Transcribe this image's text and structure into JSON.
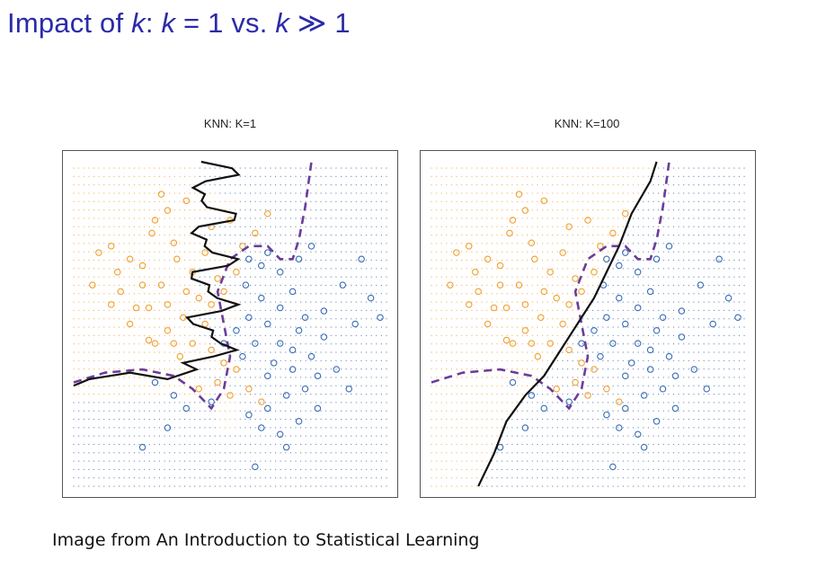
{
  "slide": {
    "title_prefix": "Impact of ",
    "title_k1": "k",
    "title_colon": ": ",
    "title_k2": "k",
    "title_eq": " = 1 vs. ",
    "title_k3": "k",
    "title_gg": " ≫ 1",
    "caption": "Image from An Introduction to Statistical Learning"
  },
  "colors": {
    "title": "#2b2ba8",
    "class_orange": "#f0a030",
    "class_blue": "#3a6db5",
    "knn_boundary": "#111111",
    "bayes_boundary": "#6a3d9a"
  },
  "chart_data": [
    {
      "type": "scatter",
      "title": "KNN: K=1",
      "xlim": [
        0,
        1
      ],
      "ylim": [
        0,
        1
      ],
      "grid_background": "dotted class-colored lattice",
      "series": [
        {
          "color": "orange",
          "points": [
            [
              0.12,
              0.74
            ],
            [
              0.18,
              0.7
            ],
            [
              0.25,
              0.78
            ],
            [
              0.3,
              0.85
            ],
            [
              0.22,
              0.68
            ],
            [
              0.08,
              0.72
            ],
            [
              0.15,
              0.6
            ],
            [
              0.2,
              0.55
            ],
            [
              0.28,
              0.62
            ],
            [
              0.33,
              0.7
            ],
            [
              0.38,
              0.66
            ],
            [
              0.42,
              0.72
            ],
            [
              0.4,
              0.58
            ],
            [
              0.35,
              0.52
            ],
            [
              0.3,
              0.48
            ],
            [
              0.24,
              0.45
            ],
            [
              0.18,
              0.5
            ],
            [
              0.12,
              0.56
            ],
            [
              0.06,
              0.62
            ],
            [
              0.28,
              0.9
            ],
            [
              0.36,
              0.88
            ],
            [
              0.44,
              0.8
            ],
            [
              0.46,
              0.64
            ],
            [
              0.42,
              0.5
            ],
            [
              0.38,
              0.44
            ],
            [
              0.34,
              0.4
            ],
            [
              0.44,
              0.42
            ],
            [
              0.48,
              0.38
            ],
            [
              0.52,
              0.36
            ],
            [
              0.4,
              0.3
            ],
            [
              0.46,
              0.32
            ],
            [
              0.5,
              0.28
            ],
            [
              0.56,
              0.3
            ],
            [
              0.6,
              0.26
            ],
            [
              0.36,
              0.6
            ],
            [
              0.26,
              0.82
            ],
            [
              0.32,
              0.75
            ],
            [
              0.14,
              0.66
            ],
            [
              0.22,
              0.62
            ],
            [
              0.48,
              0.6
            ],
            [
              0.52,
              0.66
            ],
            [
              0.54,
              0.74
            ],
            [
              0.5,
              0.82
            ],
            [
              0.58,
              0.78
            ],
            [
              0.62,
              0.84
            ],
            [
              0.24,
              0.55
            ],
            [
              0.3,
              0.56
            ],
            [
              0.44,
              0.56
            ],
            [
              0.26,
              0.44
            ],
            [
              0.32,
              0.44
            ]
          ]
        },
        {
          "color": "blue",
          "points": [
            [
              0.55,
              0.62
            ],
            [
              0.6,
              0.58
            ],
            [
              0.66,
              0.55
            ],
            [
              0.7,
              0.6
            ],
            [
              0.62,
              0.5
            ],
            [
              0.58,
              0.44
            ],
            [
              0.66,
              0.44
            ],
            [
              0.72,
              0.48
            ],
            [
              0.64,
              0.38
            ],
            [
              0.7,
              0.36
            ],
            [
              0.76,
              0.4
            ],
            [
              0.8,
              0.46
            ],
            [
              0.74,
              0.3
            ],
            [
              0.68,
              0.28
            ],
            [
              0.62,
              0.24
            ],
            [
              0.56,
              0.22
            ],
            [
              0.6,
              0.18
            ],
            [
              0.66,
              0.16
            ],
            [
              0.72,
              0.2
            ],
            [
              0.78,
              0.24
            ],
            [
              0.84,
              0.36
            ],
            [
              0.88,
              0.3
            ],
            [
              0.92,
              0.7
            ],
            [
              0.95,
              0.58
            ],
            [
              0.86,
              0.62
            ],
            [
              0.9,
              0.5
            ],
            [
              0.98,
              0.52
            ],
            [
              0.56,
              0.52
            ],
            [
              0.52,
              0.48
            ],
            [
              0.48,
              0.44
            ],
            [
              0.44,
              0.26
            ],
            [
              0.32,
              0.28
            ],
            [
              0.36,
              0.24
            ],
            [
              0.26,
              0.32
            ],
            [
              0.3,
              0.18
            ],
            [
              0.22,
              0.12
            ],
            [
              0.6,
              0.68
            ],
            [
              0.56,
              0.7
            ],
            [
              0.62,
              0.72
            ],
            [
              0.66,
              0.66
            ],
            [
              0.72,
              0.7
            ],
            [
              0.76,
              0.74
            ],
            [
              0.74,
              0.52
            ],
            [
              0.8,
              0.54
            ],
            [
              0.68,
              0.12
            ],
            [
              0.58,
              0.06
            ],
            [
              0.62,
              0.34
            ],
            [
              0.54,
              0.4
            ],
            [
              0.7,
              0.42
            ],
            [
              0.78,
              0.34
            ]
          ]
        }
      ]
    },
    {
      "type": "scatter",
      "title": "KNN: K=100",
      "xlim": [
        0,
        1
      ],
      "ylim": [
        0,
        1
      ],
      "grid_background": "dotted class-colored lattice",
      "series": [
        {
          "color": "orange",
          "points": [
            [
              0.12,
              0.74
            ],
            [
              0.18,
              0.7
            ],
            [
              0.25,
              0.78
            ],
            [
              0.3,
              0.85
            ],
            [
              0.22,
              0.68
            ],
            [
              0.08,
              0.72
            ],
            [
              0.15,
              0.6
            ],
            [
              0.2,
              0.55
            ],
            [
              0.28,
              0.62
            ],
            [
              0.33,
              0.7
            ],
            [
              0.38,
              0.66
            ],
            [
              0.42,
              0.72
            ],
            [
              0.4,
              0.58
            ],
            [
              0.35,
              0.52
            ],
            [
              0.3,
              0.48
            ],
            [
              0.24,
              0.45
            ],
            [
              0.18,
              0.5
            ],
            [
              0.12,
              0.56
            ],
            [
              0.06,
              0.62
            ],
            [
              0.28,
              0.9
            ],
            [
              0.36,
              0.88
            ],
            [
              0.44,
              0.8
            ],
            [
              0.46,
              0.64
            ],
            [
              0.42,
              0.5
            ],
            [
              0.38,
              0.44
            ],
            [
              0.34,
              0.4
            ],
            [
              0.44,
              0.42
            ],
            [
              0.48,
              0.38
            ],
            [
              0.52,
              0.36
            ],
            [
              0.4,
              0.3
            ],
            [
              0.46,
              0.32
            ],
            [
              0.5,
              0.28
            ],
            [
              0.56,
              0.3
            ],
            [
              0.6,
              0.26
            ],
            [
              0.36,
              0.6
            ],
            [
              0.26,
              0.82
            ],
            [
              0.32,
              0.75
            ],
            [
              0.14,
              0.66
            ],
            [
              0.22,
              0.62
            ],
            [
              0.48,
              0.6
            ],
            [
              0.52,
              0.66
            ],
            [
              0.54,
              0.74
            ],
            [
              0.5,
              0.82
            ],
            [
              0.58,
              0.78
            ],
            [
              0.62,
              0.84
            ],
            [
              0.24,
              0.55
            ],
            [
              0.3,
              0.56
            ],
            [
              0.44,
              0.56
            ],
            [
              0.26,
              0.44
            ],
            [
              0.32,
              0.44
            ]
          ]
        },
        {
          "color": "blue",
          "points": [
            [
              0.55,
              0.62
            ],
            [
              0.6,
              0.58
            ],
            [
              0.66,
              0.55
            ],
            [
              0.7,
              0.6
            ],
            [
              0.62,
              0.5
            ],
            [
              0.58,
              0.44
            ],
            [
              0.66,
              0.44
            ],
            [
              0.72,
              0.48
            ],
            [
              0.64,
              0.38
            ],
            [
              0.7,
              0.36
            ],
            [
              0.76,
              0.4
            ],
            [
              0.8,
              0.46
            ],
            [
              0.74,
              0.3
            ],
            [
              0.68,
              0.28
            ],
            [
              0.62,
              0.24
            ],
            [
              0.56,
              0.22
            ],
            [
              0.6,
              0.18
            ],
            [
              0.66,
              0.16
            ],
            [
              0.72,
              0.2
            ],
            [
              0.78,
              0.24
            ],
            [
              0.84,
              0.36
            ],
            [
              0.88,
              0.3
            ],
            [
              0.92,
              0.7
            ],
            [
              0.95,
              0.58
            ],
            [
              0.86,
              0.62
            ],
            [
              0.9,
              0.5
            ],
            [
              0.98,
              0.52
            ],
            [
              0.56,
              0.52
            ],
            [
              0.52,
              0.48
            ],
            [
              0.48,
              0.44
            ],
            [
              0.44,
              0.26
            ],
            [
              0.32,
              0.28
            ],
            [
              0.36,
              0.24
            ],
            [
              0.26,
              0.32
            ],
            [
              0.3,
              0.18
            ],
            [
              0.22,
              0.12
            ],
            [
              0.6,
              0.68
            ],
            [
              0.56,
              0.7
            ],
            [
              0.62,
              0.72
            ],
            [
              0.66,
              0.66
            ],
            [
              0.72,
              0.7
            ],
            [
              0.76,
              0.74
            ],
            [
              0.74,
              0.52
            ],
            [
              0.8,
              0.54
            ],
            [
              0.68,
              0.12
            ],
            [
              0.58,
              0.06
            ],
            [
              0.62,
              0.34
            ],
            [
              0.54,
              0.4
            ],
            [
              0.7,
              0.42
            ],
            [
              0.78,
              0.34
            ]
          ]
        }
      ],
      "knn_boundary": [
        [
          0.15,
          0.0
        ],
        [
          0.2,
          0.1
        ],
        [
          0.24,
          0.2
        ],
        [
          0.3,
          0.28
        ],
        [
          0.36,
          0.34
        ],
        [
          0.4,
          0.4
        ],
        [
          0.44,
          0.46
        ],
        [
          0.48,
          0.52
        ],
        [
          0.52,
          0.58
        ],
        [
          0.56,
          0.66
        ],
        [
          0.6,
          0.74
        ],
        [
          0.64,
          0.84
        ],
        [
          0.7,
          0.94
        ],
        [
          0.72,
          1.0
        ]
      ],
      "bayes_boundary": [
        [
          0.0,
          0.32
        ],
        [
          0.1,
          0.35
        ],
        [
          0.22,
          0.36
        ],
        [
          0.32,
          0.34
        ],
        [
          0.38,
          0.3
        ],
        [
          0.42,
          0.26
        ],
        [
          0.44,
          0.24
        ],
        [
          0.48,
          0.3
        ],
        [
          0.5,
          0.4
        ],
        [
          0.48,
          0.5
        ],
        [
          0.46,
          0.6
        ],
        [
          0.5,
          0.7
        ],
        [
          0.56,
          0.74
        ],
        [
          0.62,
          0.74
        ],
        [
          0.66,
          0.7
        ],
        [
          0.7,
          0.7
        ],
        [
          0.72,
          0.76
        ],
        [
          0.74,
          0.86
        ],
        [
          0.76,
          1.0
        ]
      ]
    }
  ]
}
